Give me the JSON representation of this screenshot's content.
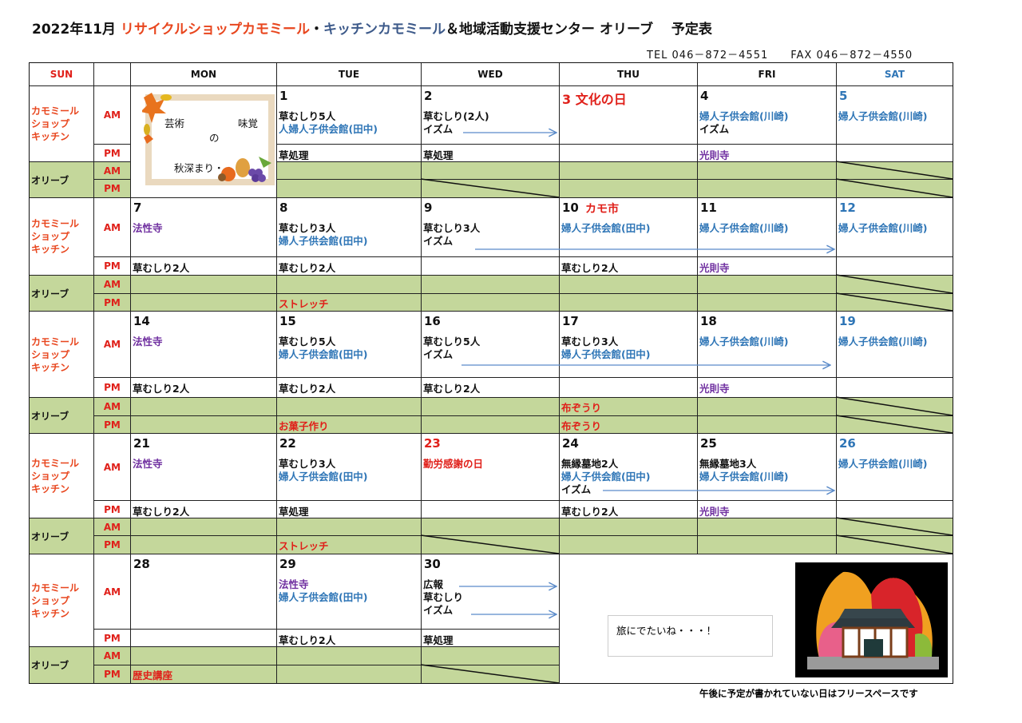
{
  "title": {
    "prefix": "2022年11月 ",
    "shop": "リサイクルショップカモミール",
    "dot": "・",
    "kitchen": "キッチンカモミール",
    "suffix": "＆地域活動支援センター オリーブ　 予定表"
  },
  "contact": "TEL 046－872－4551　　FAX 046－872－4550",
  "colors": {
    "k": "#111111",
    "b": "#2e75b6",
    "r": "#e0201a",
    "p": "#7030a0",
    "o": "#e8461e",
    "navy": "#3d5a8a",
    "green": "#c4d79b",
    "arrow": "#5b8bc9"
  },
  "header": [
    "SUN",
    "",
    "MON",
    "TUE",
    "WED",
    "THU",
    "FRI",
    "SAT"
  ],
  "labels": {
    "shop": [
      "カモミール",
      "ショップ",
      "キッチン"
    ],
    "olive": "オリーブ",
    "am": "AM",
    "pm": "PM"
  },
  "card": {
    "left": "芸術",
    "right": "味覚",
    "mid": "の",
    "bottom": "秋深まり・・"
  },
  "note": "旅にでたいね・・・！",
  "footer": "午後に予定が書かれていない日はフリースペースです",
  "weeks": [
    {
      "days": [
        null,
        {
          "num": "1",
          "nc": "k",
          "am": [
            [
              "草むしり5人",
              "k"
            ],
            [
              "人婦人子供会館(田中)",
              "b"
            ]
          ],
          "pm": [
            [
              "草処理",
              "k"
            ]
          ]
        },
        {
          "num": "2",
          "nc": "k",
          "am": [
            [
              "草むしり(2人)",
              "k"
            ],
            [
              "イズム",
              "k"
            ]
          ],
          "pm": [
            [
              "草処理",
              "k"
            ]
          ],
          "diag_opm": true
        },
        {
          "num": "3 文化の日",
          "nc": "r",
          "big": true,
          "am": [],
          "pm": []
        },
        {
          "num": "4",
          "nc": "k",
          "am": [
            [
              "婦人子供会館(川崎)",
              "b"
            ],
            [
              "イズム",
              "k"
            ]
          ],
          "pm": [
            [
              "光則寺",
              "p"
            ]
          ]
        },
        {
          "num": "5",
          "nc": "b",
          "am": [
            [
              "婦人子供会館(川崎)",
              "b"
            ]
          ],
          "pm": [],
          "diag_oam": true,
          "diag_opm": true
        }
      ]
    },
    {
      "days": [
        {
          "num": "7",
          "nc": "k",
          "am": [
            [
              "法性寺",
              "p"
            ]
          ],
          "pm": [
            [
              "草むしり2人",
              "k"
            ]
          ]
        },
        {
          "num": "8",
          "nc": "k",
          "am": [
            [
              "草むしり3人",
              "k"
            ],
            [
              "婦人子供会館(田中)",
              "b"
            ]
          ],
          "pm": [
            [
              "草むしり2人",
              "k"
            ]
          ],
          "opm": [
            "ストレッチ",
            "r"
          ]
        },
        {
          "num": "9",
          "nc": "k",
          "am": [
            [
              "草むしり3人",
              "k"
            ],
            [
              "イズム",
              "k"
            ]
          ],
          "pm": []
        },
        {
          "num": "10",
          "nc": "k",
          "extra": "カモ市",
          "am": [
            [
              "婦人子供会館(田中)",
              "b"
            ]
          ],
          "pm": [
            [
              "草むしり2人",
              "k"
            ]
          ]
        },
        {
          "num": "11",
          "nc": "k",
          "am": [
            [
              "婦人子供会館(川崎)",
              "b"
            ]
          ],
          "pm": [
            [
              "光則寺",
              "p"
            ]
          ]
        },
        {
          "num": "12",
          "nc": "b",
          "am": [
            [
              "婦人子供会館(川崎)",
              "b"
            ]
          ],
          "pm": [],
          "diag_oam": true,
          "diag_opm": true
        }
      ]
    },
    {
      "days": [
        {
          "num": "14",
          "nc": "k",
          "am": [
            [
              "法性寺",
              "p"
            ]
          ],
          "pm": [
            [
              "草むしり2人",
              "k"
            ]
          ]
        },
        {
          "num": "15",
          "nc": "k",
          "am": [
            [
              "草むしり5人",
              "k"
            ],
            [
              "婦人子供会館(田中)",
              "b"
            ]
          ],
          "pm": [
            [
              "草むしり2人",
              "k"
            ]
          ],
          "opm": [
            "お菓子作り",
            "r"
          ]
        },
        {
          "num": "16",
          "nc": "k",
          "am": [
            [
              "草むしり5人",
              "k"
            ],
            [
              "イズム",
              "k"
            ]
          ],
          "pm": [
            [
              "草むしり2人",
              "k"
            ]
          ]
        },
        {
          "num": "17",
          "nc": "k",
          "am": [
            [
              "草むしり3人",
              "k"
            ],
            [
              "婦人子供会館(田中)",
              "b"
            ]
          ],
          "pm": [],
          "oam": [
            "布ぞうり",
            "r"
          ],
          "opm": [
            "布ぞうり",
            "r"
          ]
        },
        {
          "num": "18",
          "nc": "k",
          "am": [
            [
              "婦人子供会館(川崎)",
              "b"
            ]
          ],
          "pm": [
            [
              "光則寺",
              "p"
            ]
          ]
        },
        {
          "num": "19",
          "nc": "b",
          "am": [
            [
              "婦人子供会館(川崎)",
              "b"
            ]
          ],
          "pm": [],
          "diag_oam": true,
          "diag_opm": true
        }
      ]
    },
    {
      "days": [
        {
          "num": "21",
          "nc": "k",
          "am": [
            [
              "法性寺",
              "p"
            ]
          ],
          "pm": [
            [
              "草むしり2人",
              "k"
            ]
          ]
        },
        {
          "num": "22",
          "nc": "k",
          "am": [
            [
              "草むしり3人",
              "k"
            ],
            [
              "婦人子供会館(田中)",
              "b"
            ]
          ],
          "pm": [
            [
              "草処理",
              "k"
            ]
          ],
          "opm": [
            "ストレッチ",
            "r"
          ]
        },
        {
          "num": "23",
          "nc": "r",
          "am": [
            [
              "勤労感謝の日",
              "r"
            ]
          ],
          "pm": [],
          "diag_opm": true
        },
        {
          "num": "24",
          "nc": "k",
          "am": [
            [
              "無縁墓地2人",
              "k"
            ],
            [
              "婦人子供会館(田中)",
              "b"
            ],
            [
              "イズム",
              "k"
            ]
          ],
          "pm": [
            [
              "草むしり2人",
              "k"
            ]
          ]
        },
        {
          "num": "25",
          "nc": "k",
          "am": [
            [
              "無縁墓地3人",
              "k"
            ],
            [
              "婦人子供会館(川崎)",
              "b"
            ]
          ],
          "pm": [
            [
              "光則寺",
              "p"
            ]
          ]
        },
        {
          "num": "26",
          "nc": "b",
          "am": [
            [
              "婦人子供会館(川崎)",
              "b"
            ]
          ],
          "pm": [],
          "diag_oam": true,
          "diag_opm": true
        }
      ]
    },
    {
      "days": [
        {
          "num": "28",
          "nc": "k",
          "am": [],
          "pm": [],
          "opm": [
            "歴史講座",
            "r"
          ]
        },
        {
          "num": "29",
          "nc": "k",
          "am": [
            [
              "法性寺",
              "p"
            ],
            [
              "婦人子供会館(田中)",
              "b"
            ]
          ],
          "pm": [
            [
              "草むしり2人",
              "k"
            ]
          ]
        },
        {
          "num": "30",
          "nc": "k",
          "am": [
            [
              "広報",
              "k"
            ],
            [
              "草むしり",
              "k"
            ],
            [
              "イズム",
              "k"
            ]
          ],
          "pm": [
            [
              "草処理",
              "k"
            ]
          ],
          "diag_opm": true
        },
        null,
        null,
        null
      ]
    }
  ]
}
